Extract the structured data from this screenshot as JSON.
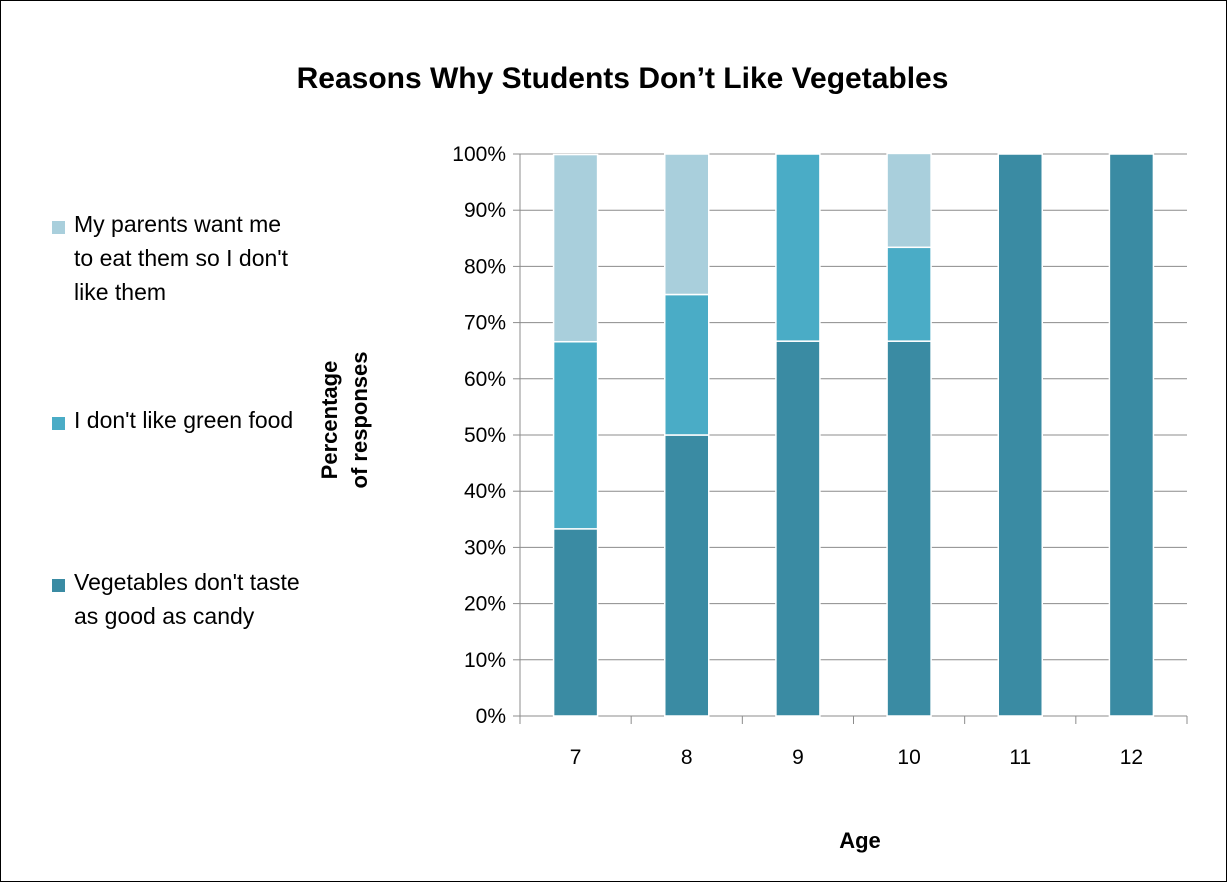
{
  "chart_data": {
    "type": "bar",
    "stacked": true,
    "normalized": true,
    "title": "Reasons Why Students Don’t Like Vegetables",
    "xlabel": "Age",
    "ylabel_lines": [
      "Percentage",
      "of responses"
    ],
    "categories": [
      "7",
      "8",
      "9",
      "10",
      "11",
      "12"
    ],
    "series": [
      {
        "name": "Vegetables don't taste as good as candy",
        "color": "#3a8ba3",
        "values": [
          33.3,
          50,
          66.7,
          66.7,
          100,
          100
        ]
      },
      {
        "name": "I don't like green food",
        "color": "#4aacc6",
        "values": [
          33.3,
          25,
          33.3,
          16.7,
          0,
          0
        ]
      },
      {
        "name": "My parents want me to eat them so I don't like them",
        "color": "#a9cfdc",
        "values": [
          33.3,
          25,
          0,
          16.7,
          0,
          0
        ]
      }
    ],
    "ylim": [
      0,
      100
    ],
    "yticks": [
      "0%",
      "10%",
      "20%",
      "30%",
      "40%",
      "50%",
      "60%",
      "70%",
      "80%",
      "90%",
      "100%"
    ],
    "grid": true,
    "legend_position": "left"
  }
}
